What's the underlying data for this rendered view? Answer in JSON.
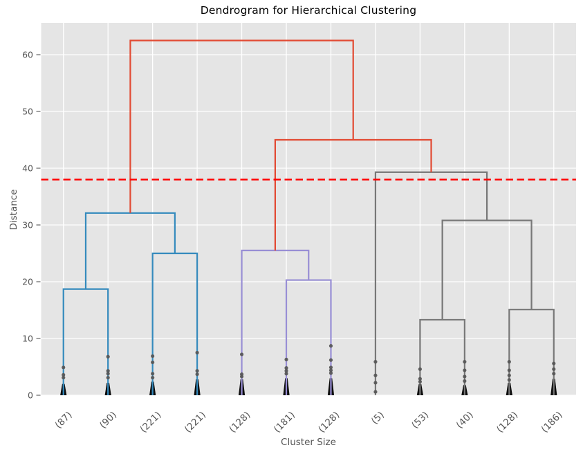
{
  "title": "Dendrogram for Hierarchical Clustering",
  "colors": {
    "figure_bg": "#ffffff",
    "axes_bg": "#e5e5e5",
    "grid": "#ffffff",
    "tick_text": "#555555",
    "title_text": "#000000",
    "marker_dot": "#565656",
    "marker_blob": "#0c0c0c",
    "cut_line": "#ff0000",
    "above_threshold_link": "#E24A33",
    "cluster_blue": "#348ABD",
    "cluster_purple": "#988ED5",
    "cluster_gray": "#777777"
  },
  "chart_data": {
    "type": "dendrogram",
    "title": "Dendrogram for Hierarchical Clustering",
    "xlabel": "Cluster Size",
    "ylabel": "Distance",
    "yticks": [
      0,
      10,
      20,
      30,
      40,
      50,
      60
    ],
    "ylim": [
      0,
      65.6
    ],
    "xlim": [
      0,
      120
    ],
    "grid": true,
    "legend": null,
    "cut_line": {
      "height": 38,
      "color": "#ff0000",
      "style": "dashed"
    },
    "leaves": [
      {
        "label": "(87)",
        "x": 5,
        "cluster_size": 87,
        "join_height": 18.7,
        "dots": [
          4.9,
          3.6,
          3.1
        ],
        "blob_top": 2.0
      },
      {
        "label": "(90)",
        "x": 15,
        "cluster_size": 90,
        "join_height": 18.7,
        "dots": [
          6.8,
          4.3,
          3.8,
          3.1
        ],
        "blob_top": 2.2
      },
      {
        "label": "(221)",
        "x": 25,
        "cluster_size": 221,
        "join_height": 25.0,
        "dots": [
          6.9,
          5.8,
          3.8,
          3.1
        ],
        "blob_top": 2.4
      },
      {
        "label": "(221)",
        "x": 35,
        "cluster_size": 221,
        "join_height": 25.0,
        "dots": [
          7.5,
          4.3,
          3.7
        ],
        "blob_top": 2.8
      },
      {
        "label": "(128)",
        "x": 45,
        "cluster_size": 128,
        "join_height": 25.5,
        "dots": [
          7.2,
          3.7,
          3.3
        ],
        "blob_top": 2.8
      },
      {
        "label": "(181)",
        "x": 55,
        "cluster_size": 181,
        "join_height": 20.3,
        "dots": [
          6.3,
          4.8,
          4.3,
          3.8
        ],
        "blob_top": 3.0
      },
      {
        "label": "(128)",
        "x": 65,
        "cluster_size": 128,
        "join_height": 20.3,
        "dots": [
          8.7,
          6.2,
          4.9,
          4.4,
          3.9
        ],
        "blob_top": 3.0
      },
      {
        "label": "(5)",
        "x": 75,
        "cluster_size": 5,
        "join_height": 39.3,
        "dots": [
          5.9,
          3.5,
          2.2,
          0.6
        ],
        "blob_top": null
      },
      {
        "label": "(53)",
        "x": 85,
        "cluster_size": 53,
        "join_height": 13.3,
        "dots": [
          4.6,
          2.9,
          2.4
        ],
        "blob_top": 2.0
      },
      {
        "label": "(40)",
        "x": 95,
        "cluster_size": 40,
        "join_height": 13.3,
        "dots": [
          5.9,
          4.4,
          3.3,
          2.5
        ],
        "blob_top": 1.8
      },
      {
        "label": "(128)",
        "x": 105,
        "cluster_size": 128,
        "join_height": 15.1,
        "dots": [
          5.9,
          4.4,
          3.5,
          2.7
        ],
        "blob_top": 2.2
      },
      {
        "label": "(186)",
        "x": 115,
        "cluster_size": 186,
        "join_height": 15.1,
        "dots": [
          5.6,
          4.6,
          3.8
        ],
        "blob_top": 2.9
      }
    ],
    "links": [
      {
        "x1": 5,
        "h1": 0,
        "x2": 15,
        "h2": 0,
        "height": 18.7,
        "color": "#348ABD"
      },
      {
        "x1": 25,
        "h1": 0,
        "x2": 35,
        "h2": 0,
        "height": 25.0,
        "color": "#348ABD"
      },
      {
        "x1": 10,
        "h1": 18.7,
        "x2": 30,
        "h2": 25.0,
        "height": 32.1,
        "color": "#348ABD"
      },
      {
        "x1": 55,
        "h1": 0,
        "x2": 65,
        "h2": 0,
        "height": 20.3,
        "color": "#988ED5"
      },
      {
        "x1": 45,
        "h1": 0,
        "x2": 60,
        "h2": 20.3,
        "height": 25.5,
        "color": "#988ED5"
      },
      {
        "x1": 85,
        "h1": 0,
        "x2": 95,
        "h2": 0,
        "height": 13.3,
        "color": "#777777"
      },
      {
        "x1": 105,
        "h1": 0,
        "x2": 115,
        "h2": 0,
        "height": 15.1,
        "color": "#777777"
      },
      {
        "x1": 90,
        "h1": 13.3,
        "x2": 110,
        "h2": 15.1,
        "height": 30.8,
        "color": "#777777"
      },
      {
        "x1": 75,
        "h1": 0,
        "x2": 100,
        "h2": 30.8,
        "height": 39.3,
        "color": "#777777"
      },
      {
        "x1": 52.5,
        "h1": 25.5,
        "x2": 87.5,
        "h2": 39.3,
        "height": 45.0,
        "color": "#E24A33"
      },
      {
        "x1": 20,
        "h1": 32.1,
        "x2": 70,
        "h2": 45.0,
        "height": 62.5,
        "color": "#E24A33"
      }
    ]
  }
}
